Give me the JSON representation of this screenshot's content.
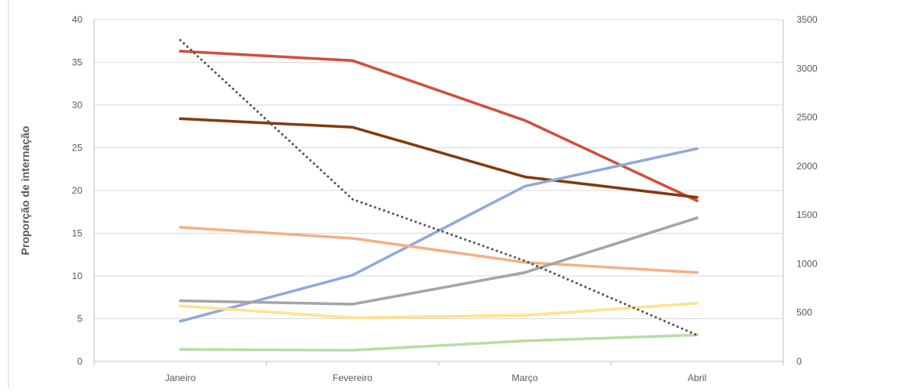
{
  "chart_data": {
    "type": "line",
    "title": "",
    "xlabel": "",
    "ylabel": "Proporção de internação",
    "y2label": "",
    "categories": [
      "Janeiro",
      "Fevereiro",
      "Março",
      "Abril"
    ],
    "ylim": [
      0,
      40
    ],
    "yticks": [
      0,
      5,
      10,
      15,
      20,
      25,
      30,
      35,
      40
    ],
    "y2lim": [
      0,
      3500
    ],
    "y2ticks": [
      0,
      500,
      1000,
      1500,
      2000,
      2500,
      3000,
      3500
    ],
    "grid": true,
    "legend": "none",
    "series": [
      {
        "axis": "left",
        "color": "#d24e3c",
        "style": "solid",
        "values": [
          36.3,
          35.2,
          28.2,
          18.8
        ]
      },
      {
        "axis": "left",
        "color": "#843a0c",
        "style": "solid",
        "values": [
          28.4,
          27.4,
          21.6,
          19.2
        ]
      },
      {
        "axis": "left",
        "color": "#8fa9dc",
        "style": "solid",
        "values": [
          4.7,
          10.1,
          20.5,
          24.9
        ]
      },
      {
        "axis": "left",
        "color": "#f3b183",
        "style": "solid",
        "values": [
          15.7,
          14.4,
          11.6,
          10.4
        ]
      },
      {
        "axis": "left",
        "color": "#a5a5a5",
        "style": "solid",
        "values": [
          7.1,
          6.7,
          10.4,
          16.8
        ]
      },
      {
        "axis": "left",
        "color": "#ffe28a",
        "style": "solid",
        "values": [
          6.5,
          5.1,
          5.4,
          6.8
        ]
      },
      {
        "axis": "left",
        "color": "#b9dca5",
        "style": "solid",
        "values": [
          1.4,
          1.3,
          2.4,
          3.1
        ]
      },
      {
        "axis": "right",
        "color": "#555555",
        "style": "dotted",
        "values": [
          3290,
          1660,
          1030,
          270
        ]
      }
    ]
  }
}
